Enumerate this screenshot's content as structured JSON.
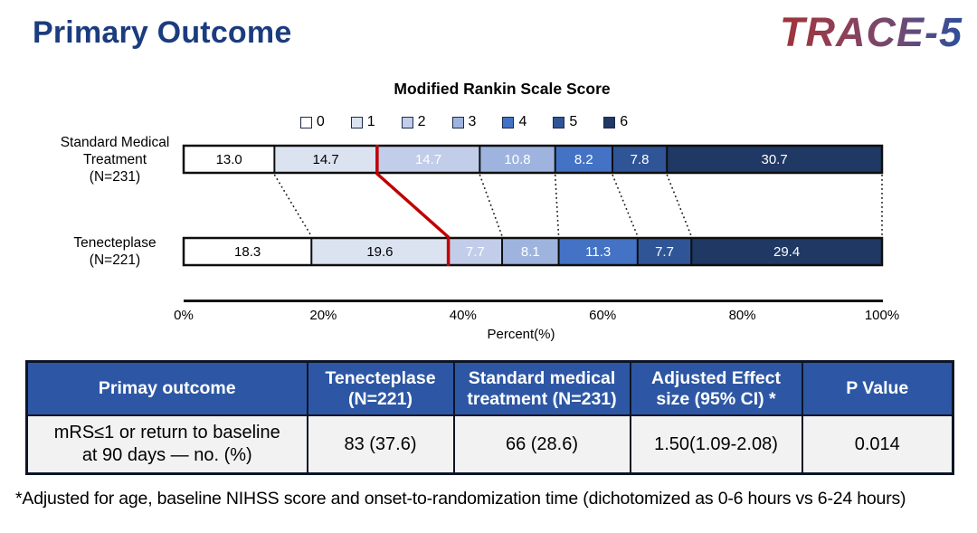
{
  "page": {
    "title": "Primary Outcome",
    "logo": "TRACE-5"
  },
  "appearance": {
    "title_color": "#1b3c7e",
    "logo_gradient": [
      "#a03238",
      "#8f4057",
      "#6e4a74",
      "#2c4f9d"
    ],
    "table_header_bg": "#2d57a4",
    "table_header_text": "#ffffff",
    "highlight_line_color": "#c00000",
    "bar_border_color": "#0e0e0e"
  },
  "chart_data": {
    "type": "bar",
    "stacked": true,
    "orientation": "horizontal",
    "title": "Modified Rankin Scale Score",
    "categories": [
      "Standard Medical Treatment (N=231)",
      "Tenecteplase (N=221)"
    ],
    "category_label_lines": [
      "Standard Medical\nTreatment\n(N=231)",
      "Tenecteplase\n(N=221)"
    ],
    "series": [
      {
        "name": "0",
        "color": "#ffffff",
        "text_color": "#000000",
        "values": [
          13.0,
          18.3
        ]
      },
      {
        "name": "1",
        "color": "#dbe3f1",
        "text_color": "#000000",
        "values": [
          14.7,
          19.6
        ]
      },
      {
        "name": "2",
        "color": "#c1cde9",
        "text_color": "#ffffff",
        "values": [
          14.7,
          7.7
        ]
      },
      {
        "name": "3",
        "color": "#9eb4df",
        "text_color": "#ffffff",
        "values": [
          10.8,
          8.1
        ]
      },
      {
        "name": "4",
        "color": "#4472c4",
        "text_color": "#ffffff",
        "values": [
          8.2,
          11.3
        ]
      },
      {
        "name": "5",
        "color": "#2f5597",
        "text_color": "#ffffff",
        "values": [
          7.8,
          7.7
        ]
      },
      {
        "name": "6",
        "color": "#1f3864",
        "text_color": "#ffffff",
        "values": [
          30.7,
          29.4
        ]
      }
    ],
    "xlabel": "Percent(%)",
    "xlim": [
      0,
      100
    ],
    "x_ticks": [
      {
        "pos": 0,
        "label": "0%"
      },
      {
        "pos": 20,
        "label": "20%"
      },
      {
        "pos": 40,
        "label": "40%"
      },
      {
        "pos": 60,
        "label": "60%"
      },
      {
        "pos": 80,
        "label": "80%"
      },
      {
        "pos": 100,
        "label": "100%"
      }
    ],
    "legend_position": "top",
    "grid": false,
    "annotations": {
      "red_divider": "between mRS 1 and mRS 2 segments of both bars"
    }
  },
  "table": {
    "headers": [
      "Primay outcome",
      "Tenecteplase\n(N=221)",
      "Standard medical\ntreatment (N=231)",
      "Adjusted Effect\nsize (95% CI) *",
      "P Value"
    ],
    "rows": [
      [
        "mRS≤1 or  return to baseline\nat 90 days — no. (%)",
        "83 (37.6)",
        "66 (28.6)",
        "1.50(1.09-2.08)",
        "0.014"
      ]
    ]
  },
  "footnote": "*Adjusted for age, baseline NIHSS score and onset-to-randomization time (dichotomized as 0-6 hours vs 6-24 hours)"
}
